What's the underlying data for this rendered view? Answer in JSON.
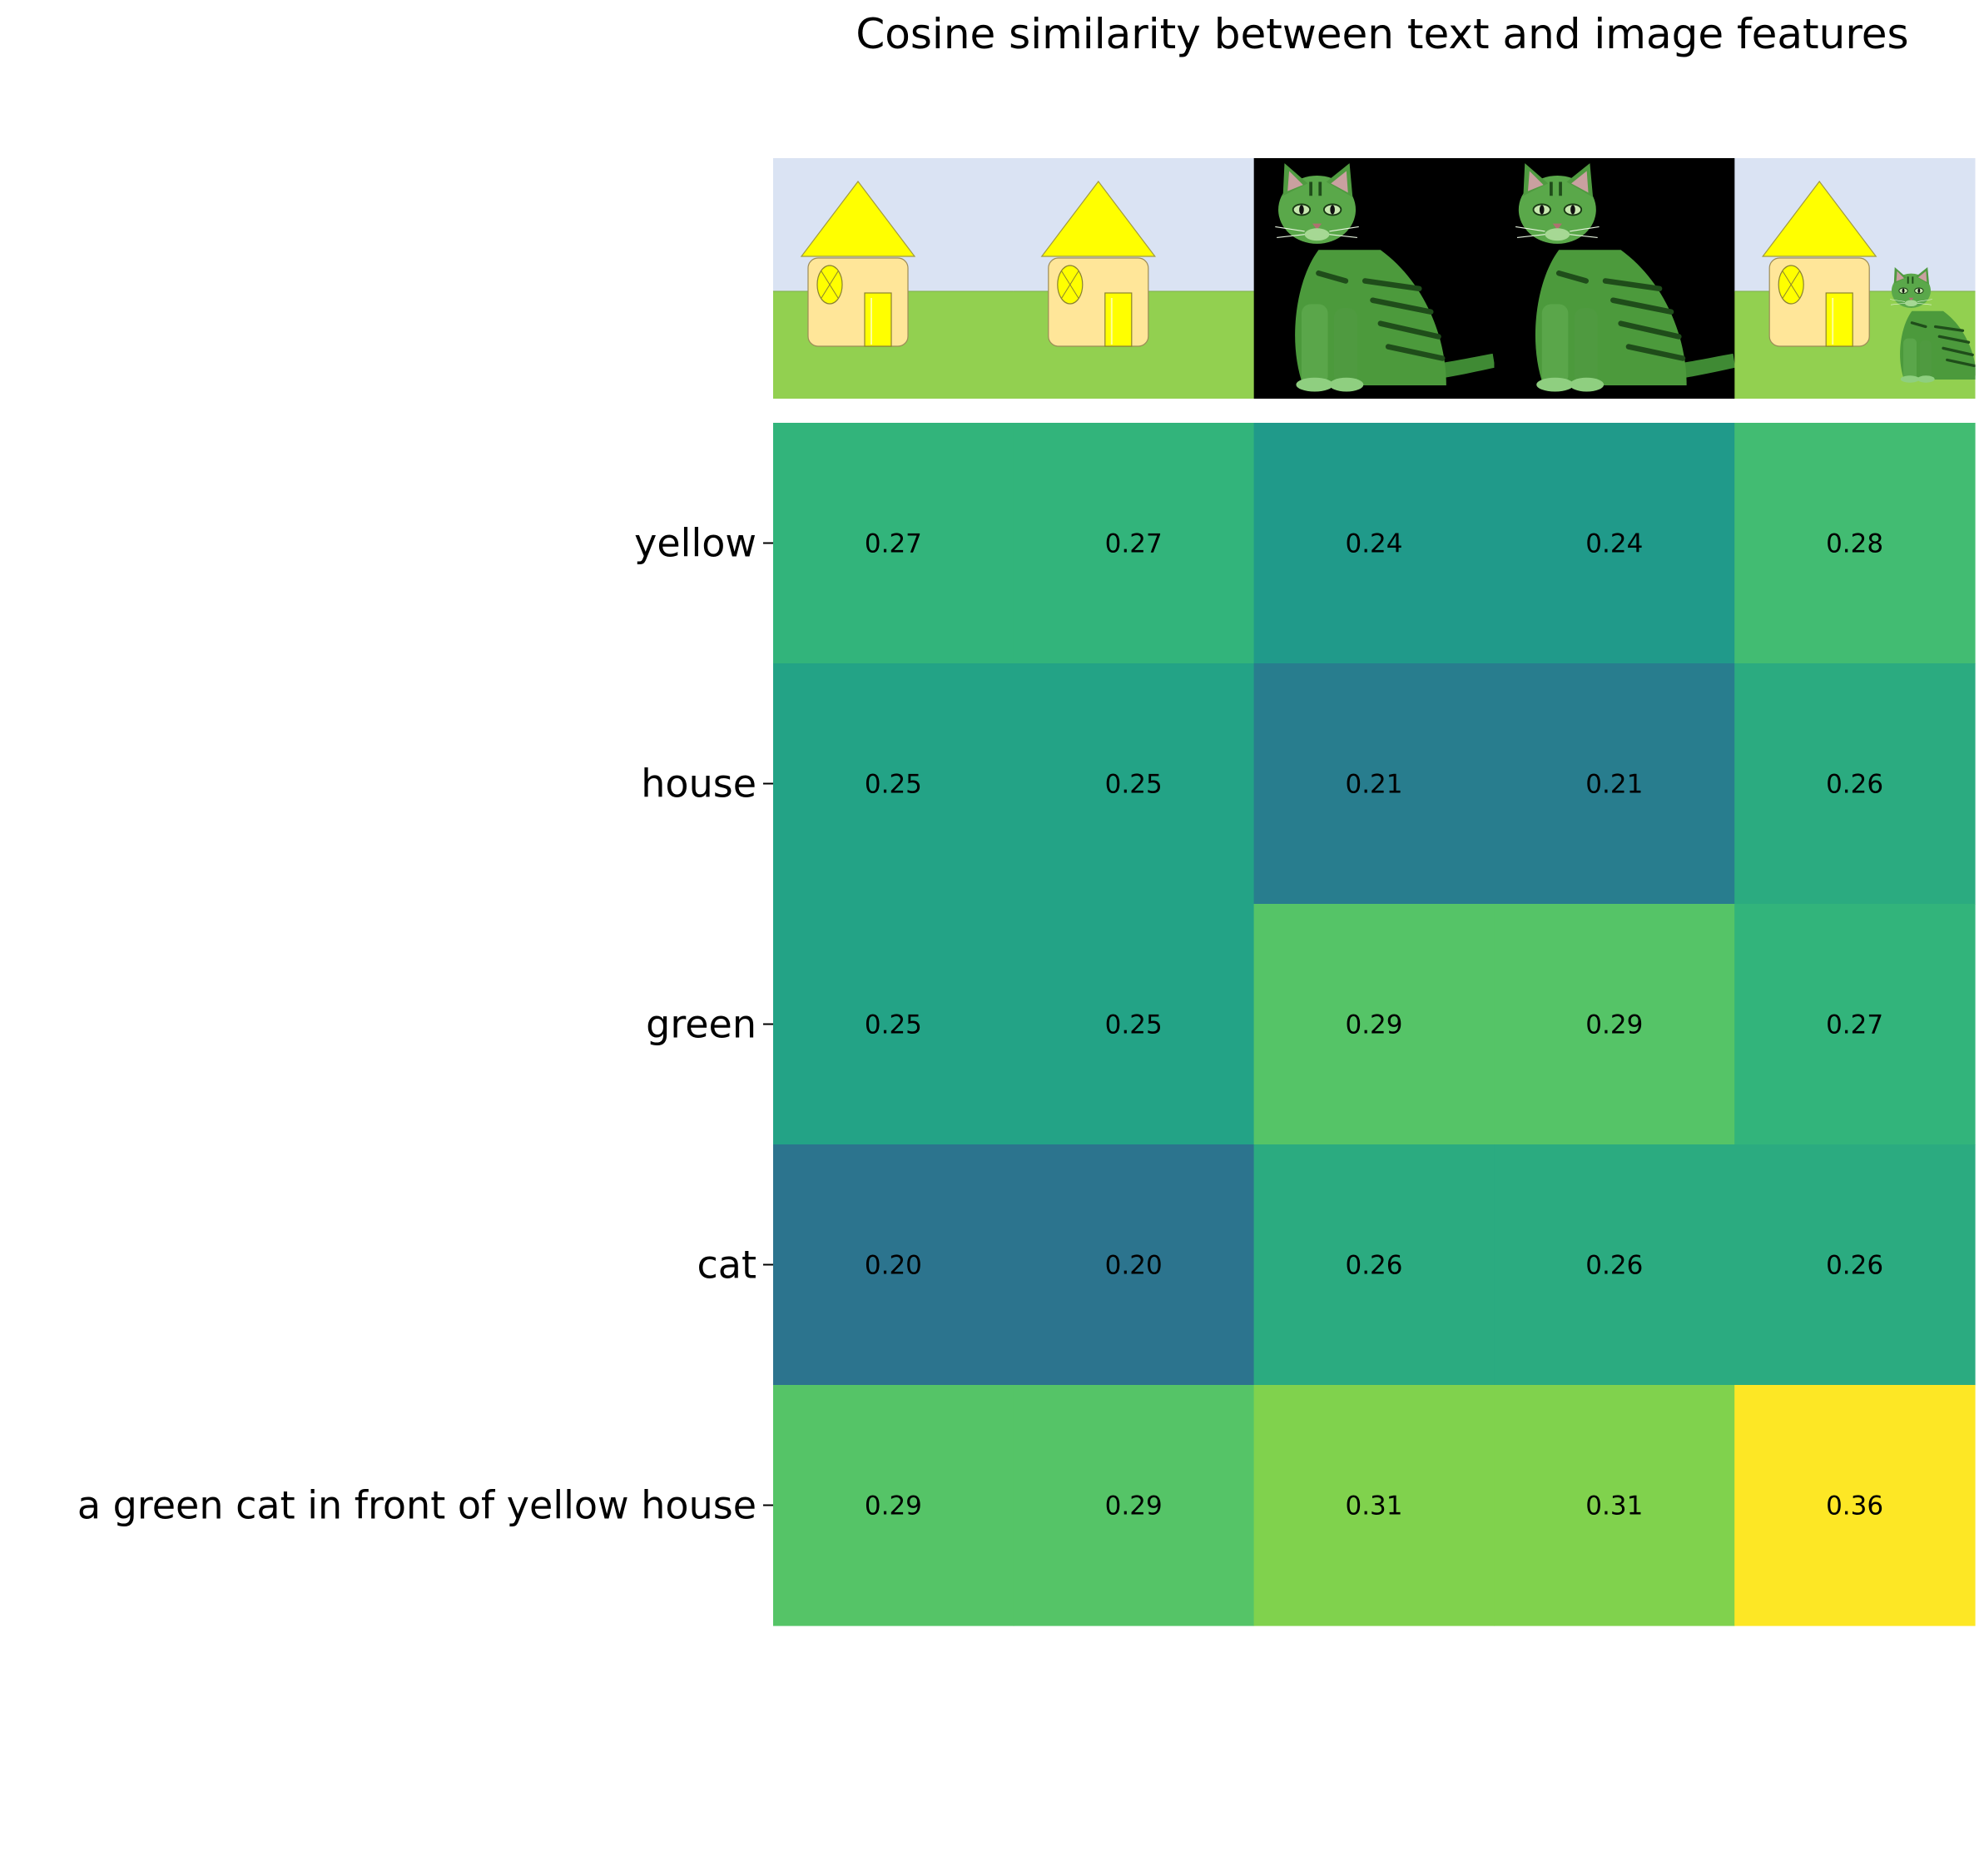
{
  "chart_data": {
    "type": "heatmap",
    "title": "Cosine similarity between text and image features",
    "xlabel": "",
    "ylabel": "",
    "rows": [
      "yellow",
      "house",
      "green",
      "cat",
      "a green cat in front of yellow house"
    ],
    "columns": [
      {
        "image": "yellow-house",
        "icon": "house-icon"
      },
      {
        "image": "yellow-house",
        "icon": "house-icon"
      },
      {
        "image": "green-cat",
        "icon": "cat-icon"
      },
      {
        "image": "green-cat",
        "icon": "cat-icon"
      },
      {
        "image": "green-cat-in-front-of-yellow-house",
        "icon": "house-with-cat-icon"
      }
    ],
    "values": [
      [
        0.27,
        0.27,
        0.24,
        0.24,
        0.28
      ],
      [
        0.25,
        0.25,
        0.21,
        0.21,
        0.26
      ],
      [
        0.25,
        0.25,
        0.29,
        0.29,
        0.27
      ],
      [
        0.2,
        0.2,
        0.26,
        0.26,
        0.26
      ],
      [
        0.29,
        0.29,
        0.31,
        0.31,
        0.36
      ]
    ],
    "value_format": "0.00",
    "colormap": "viridis",
    "grid": false,
    "legend": "none"
  },
  "colors": {
    "sky": "#dae3f3",
    "grass": "#92d050",
    "house_wall": "#ffe699",
    "roof_door_window": "#ffff00",
    "cat_background": "#000000",
    "cat_fur": "#4c9a3c",
    "cat_stripes": "#1f4d1a"
  }
}
